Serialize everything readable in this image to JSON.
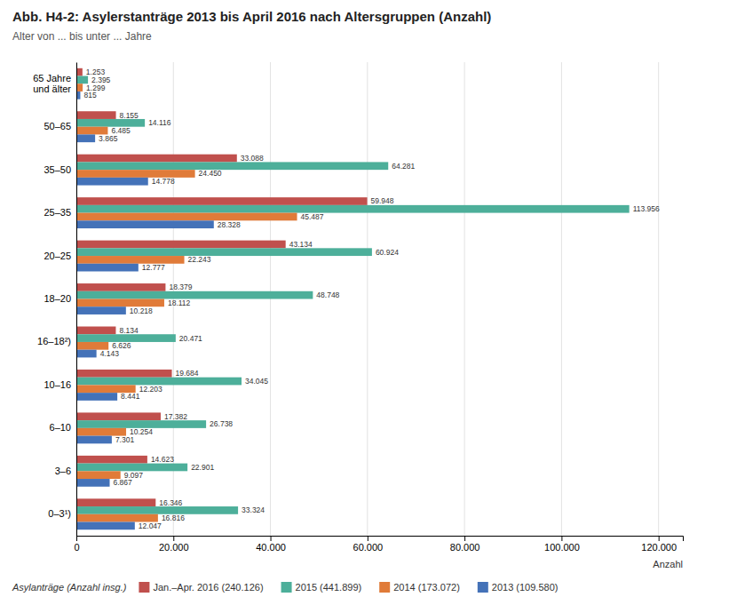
{
  "chart_data": {
    "type": "bar",
    "orientation": "horizontal",
    "title": "Abb. H4-2: Asylerstanträge 2013 bis April 2016 nach Altersgruppen (Anzahl)",
    "subtitle": "Alter von ... bis unter ... Jahre",
    "xlabel": "Anzahl",
    "legend_title": "Asylanträge (Anzahl insg.)",
    "categories": [
      "0–3¹)",
      "3–6",
      "6–10",
      "10–16",
      "16–18²)",
      "18–20",
      "20–25",
      "25–35",
      "35–50",
      "50–65",
      "65 Jahre\nund älter"
    ],
    "series": [
      {
        "name": "Jan.–Apr. 2016 (240.126)",
        "color": "#c0504d",
        "values": [
          16346,
          14623,
          17382,
          19684,
          8134,
          18379,
          43134,
          59948,
          33088,
          8155,
          1253
        ],
        "value_labels": [
          "16.346",
          "14.623",
          "17.382",
          "19.684",
          "8.134",
          "18.379",
          "43.134",
          "59.948",
          "33.088",
          "8.155",
          "1.253"
        ]
      },
      {
        "name": "2015 (441.899)",
        "color": "#4daf9a",
        "values": [
          33324,
          22901,
          26738,
          34045,
          20471,
          48748,
          60924,
          113956,
          64281,
          14116,
          2395
        ],
        "value_labels": [
          "33.324",
          "22.901",
          "26.738",
          "34.045",
          "20.471",
          "48.748",
          "60.924",
          "113.956",
          "64.281",
          "14.116",
          "2.395"
        ]
      },
      {
        "name": "2014 (173.072)",
        "color": "#e07b39",
        "values": [
          16816,
          9097,
          10254,
          12203,
          6626,
          18112,
          22243,
          45487,
          24450,
          6485,
          1299
        ],
        "value_labels": [
          "16.816",
          "9.097",
          "10.254",
          "12.203",
          "6.626",
          "18.112",
          "22.243",
          "45.487",
          "24.450",
          "6.485",
          "1.299"
        ]
      },
      {
        "name": "2013 (109.580)",
        "color": "#4472b8",
        "values": [
          12047,
          6867,
          7301,
          8441,
          4143,
          10218,
          12777,
          28328,
          14778,
          3865,
          815
        ],
        "value_labels": [
          "12.047",
          "6.867",
          "7.301",
          "8.441",
          "4.143",
          "10.218",
          "12.777",
          "28.328",
          "14.778",
          "3.865",
          "815"
        ]
      }
    ],
    "xlim": [
      0,
      125000
    ],
    "xticks": [
      0,
      {
        "value": 20000,
        "label": "20.000"
      },
      {
        "value": 40000,
        "label": "40.000"
      },
      {
        "value": 60000,
        "label": "60.000"
      },
      {
        "value": 80000,
        "label": "80.000"
      },
      {
        "value": 100000,
        "label": "100.000"
      },
      {
        "value": 120000,
        "label": "120.000"
      }
    ],
    "grid": true,
    "data_labels": true,
    "legend": "bottom"
  }
}
